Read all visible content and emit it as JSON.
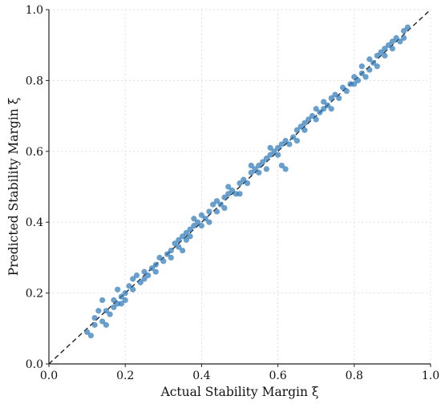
{
  "chart_data": {
    "type": "scatter",
    "title": "",
    "xlabel": "Actual Stability Margin ξ",
    "ylabel": "Predicted Stability Margin ξ",
    "xlim": [
      0.0,
      1.0
    ],
    "ylim": [
      0.0,
      1.0
    ],
    "xticks": [
      "0.0",
      "0.2",
      "0.4",
      "0.6",
      "0.8",
      "1.0"
    ],
    "yticks": [
      "0.0",
      "0.2",
      "0.4",
      "0.6",
      "0.8",
      "1.0"
    ],
    "grid": true,
    "reference_line": {
      "style": "dashed",
      "x": [
        0,
        1
      ],
      "y": [
        0,
        1
      ]
    },
    "colors": {
      "points": "#2f7ab8",
      "reference": "#222222",
      "grid": "#d9d9d9"
    },
    "series": [
      {
        "points": [
          [
            0.1,
            0.09
          ],
          [
            0.11,
            0.08
          ],
          [
            0.12,
            0.11
          ],
          [
            0.12,
            0.13
          ],
          [
            0.13,
            0.15
          ],
          [
            0.14,
            0.12
          ],
          [
            0.14,
            0.18
          ],
          [
            0.15,
            0.15
          ],
          [
            0.15,
            0.11
          ],
          [
            0.16,
            0.14
          ],
          [
            0.17,
            0.16
          ],
          [
            0.17,
            0.18
          ],
          [
            0.18,
            0.17
          ],
          [
            0.18,
            0.21
          ],
          [
            0.19,
            0.19
          ],
          [
            0.19,
            0.17
          ],
          [
            0.2,
            0.2
          ],
          [
            0.2,
            0.18
          ],
          [
            0.21,
            0.22
          ],
          [
            0.22,
            0.24
          ],
          [
            0.22,
            0.21
          ],
          [
            0.23,
            0.25
          ],
          [
            0.24,
            0.23
          ],
          [
            0.25,
            0.24
          ],
          [
            0.25,
            0.26
          ],
          [
            0.26,
            0.25
          ],
          [
            0.27,
            0.27
          ],
          [
            0.28,
            0.28
          ],
          [
            0.28,
            0.26
          ],
          [
            0.29,
            0.3
          ],
          [
            0.3,
            0.29
          ],
          [
            0.31,
            0.31
          ],
          [
            0.32,
            0.32
          ],
          [
            0.32,
            0.3
          ],
          [
            0.33,
            0.34
          ],
          [
            0.34,
            0.33
          ],
          [
            0.34,
            0.35
          ],
          [
            0.35,
            0.36
          ],
          [
            0.35,
            0.32
          ],
          [
            0.36,
            0.35
          ],
          [
            0.36,
            0.37
          ],
          [
            0.37,
            0.38
          ],
          [
            0.37,
            0.36
          ],
          [
            0.38,
            0.39
          ],
          [
            0.38,
            0.41
          ],
          [
            0.39,
            0.4
          ],
          [
            0.4,
            0.39
          ],
          [
            0.4,
            0.42
          ],
          [
            0.41,
            0.41
          ],
          [
            0.42,
            0.43
          ],
          [
            0.42,
            0.4
          ],
          [
            0.43,
            0.45
          ],
          [
            0.44,
            0.43
          ],
          [
            0.44,
            0.46
          ],
          [
            0.45,
            0.45
          ],
          [
            0.46,
            0.47
          ],
          [
            0.46,
            0.44
          ],
          [
            0.47,
            0.48
          ],
          [
            0.47,
            0.5
          ],
          [
            0.48,
            0.49
          ],
          [
            0.49,
            0.48
          ],
          [
            0.5,
            0.51
          ],
          [
            0.5,
            0.48
          ],
          [
            0.51,
            0.52
          ],
          [
            0.52,
            0.51
          ],
          [
            0.53,
            0.54
          ],
          [
            0.53,
            0.56
          ],
          [
            0.54,
            0.55
          ],
          [
            0.55,
            0.54
          ],
          [
            0.55,
            0.56
          ],
          [
            0.56,
            0.57
          ],
          [
            0.57,
            0.55
          ],
          [
            0.57,
            0.58
          ],
          [
            0.58,
            0.59
          ],
          [
            0.58,
            0.61
          ],
          [
            0.59,
            0.6
          ],
          [
            0.6,
            0.59
          ],
          [
            0.6,
            0.61
          ],
          [
            0.61,
            0.62
          ],
          [
            0.61,
            0.56
          ],
          [
            0.62,
            0.55
          ],
          [
            0.62,
            0.63
          ],
          [
            0.63,
            0.62
          ],
          [
            0.64,
            0.64
          ],
          [
            0.65,
            0.66
          ],
          [
            0.65,
            0.63
          ],
          [
            0.66,
            0.67
          ],
          [
            0.67,
            0.66
          ],
          [
            0.67,
            0.68
          ],
          [
            0.68,
            0.69
          ],
          [
            0.69,
            0.7
          ],
          [
            0.7,
            0.69
          ],
          [
            0.7,
            0.72
          ],
          [
            0.71,
            0.71
          ],
          [
            0.72,
            0.72
          ],
          [
            0.72,
            0.74
          ],
          [
            0.73,
            0.73
          ],
          [
            0.74,
            0.75
          ],
          [
            0.74,
            0.72
          ],
          [
            0.75,
            0.76
          ],
          [
            0.76,
            0.75
          ],
          [
            0.77,
            0.78
          ],
          [
            0.78,
            0.77
          ],
          [
            0.79,
            0.79
          ],
          [
            0.8,
            0.81
          ],
          [
            0.8,
            0.79
          ],
          [
            0.81,
            0.8
          ],
          [
            0.82,
            0.82
          ],
          [
            0.82,
            0.84
          ],
          [
            0.83,
            0.81
          ],
          [
            0.84,
            0.83
          ],
          [
            0.84,
            0.86
          ],
          [
            0.85,
            0.85
          ],
          [
            0.86,
            0.87
          ],
          [
            0.86,
            0.84
          ],
          [
            0.87,
            0.88
          ],
          [
            0.88,
            0.87
          ],
          [
            0.88,
            0.89
          ],
          [
            0.89,
            0.9
          ],
          [
            0.9,
            0.89
          ],
          [
            0.9,
            0.91
          ],
          [
            0.91,
            0.92
          ],
          [
            0.92,
            0.91
          ],
          [
            0.93,
            0.94
          ],
          [
            0.93,
            0.92
          ],
          [
            0.94,
            0.95
          ]
        ]
      }
    ]
  }
}
